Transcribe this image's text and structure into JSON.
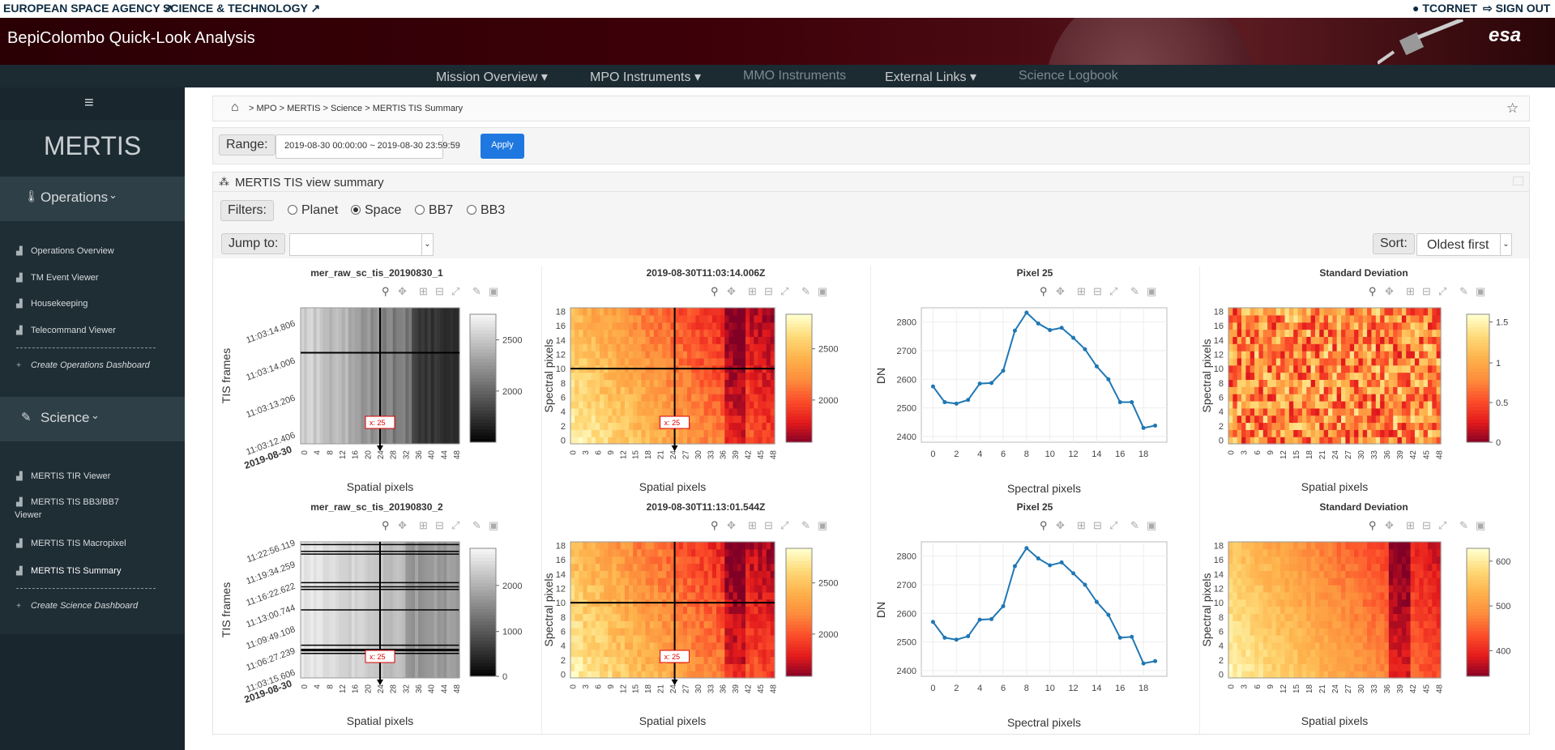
{
  "topbar": {
    "esa_link": "EUROPEAN SPACE AGENCY",
    "sci_link": "SCIENCE & TECHNOLOGY",
    "user": "TCORNET",
    "signout": "SIGN OUT"
  },
  "banner": {
    "title": "BepiColombo Quick-Look Analysis",
    "logo": "esa"
  },
  "nav": {
    "items": [
      {
        "label": "Mission Overview"
      },
      {
        "label": "MPO Instruments"
      },
      {
        "label": "MMO Instruments"
      },
      {
        "label": "External Links"
      },
      {
        "label": "Science Logbook"
      }
    ]
  },
  "sidebar": {
    "menu_icon": "hamburger-icon",
    "instrument": "MERTIS",
    "operations_label": "Operations",
    "operations_items": [
      "Operations Overview",
      "TM Event Viewer",
      "Housekeeping",
      "Telecommand Viewer"
    ],
    "create_ops": "Create Operations Dashboard",
    "science_label": "Science",
    "science_items": [
      "MERTIS TIR Viewer",
      "MERTIS TIS BB3/BB7",
      "Viewer",
      "MERTIS TIS Macropixel",
      "MERTIS TIS Summary"
    ],
    "create_sci": "Create Science Dashboard"
  },
  "breadcrumb": {
    "items": [
      "MPO",
      "MERTIS",
      "Science",
      "MERTIS TIS Summary"
    ]
  },
  "range": {
    "label": "Range:",
    "value": "2019-08-30 00:00:00 ~ 2019-08-30 23:59:59",
    "apply": "Apply"
  },
  "panel": {
    "title": "MERTIS TIS view summary",
    "filters_label": "Filters:",
    "filters": [
      "Planet",
      "Space",
      "BB7",
      "BB3"
    ],
    "selected_filter": "Space",
    "jump_label": "Jump to:",
    "sort_label": "Sort:",
    "sort_value": "Oldest first"
  },
  "rows": [
    {
      "t1": "mer_raw_sc_tis_20190830_1",
      "t2": "2019-08-30T11:03:14.006Z",
      "t3": "Pixel 25",
      "t4": "Standard Deviation",
      "yticks": [
        "11:03:14.806",
        "11:03:14.006",
        "11:03:13.206",
        "11:03:12.406"
      ],
      "date": "2019-08-30",
      "gray_ticks": [
        "2500",
        "2000"
      ],
      "heat_ticks": [
        "2500",
        "2000"
      ],
      "std_ticks": [
        "1.5",
        "1",
        "0.5",
        "0"
      ],
      "line": {
        "x": [
          0,
          1,
          2,
          3,
          4,
          5,
          6,
          7,
          8,
          9,
          10,
          11,
          12,
          13,
          14,
          15,
          16,
          17,
          18,
          19
        ],
        "y": [
          2575,
          2520,
          2515,
          2528,
          2585,
          2587,
          2630,
          2770,
          2833,
          2795,
          2772,
          2780,
          2745,
          2705,
          2645,
          2600,
          2520,
          2520,
          2430,
          2438
        ]
      }
    },
    {
      "t1": "mer_raw_sc_tis_20190830_2",
      "t2": "2019-08-30T11:13:01.544Z",
      "t3": "Pixel 25",
      "t4": "Standard Deviation",
      "yticks": [
        "11:22:56.119",
        "11:19:34.259",
        "11:16:22.622",
        "11:13:00.744",
        "11:09:49.108",
        "11:06:27.239",
        "11:03:15.606"
      ],
      "date": "2019-08-30",
      "gray_ticks": [
        "2000",
        "1000",
        "0"
      ],
      "heat_ticks": [
        "2500",
        "2000"
      ],
      "std_ticks": [
        "600",
        "500",
        "400"
      ],
      "line": {
        "x": [
          0,
          1,
          2,
          3,
          4,
          5,
          6,
          7,
          8,
          9,
          10,
          11,
          12,
          13,
          14,
          15,
          16,
          17,
          18,
          19
        ],
        "y": [
          2570,
          2515,
          2508,
          2520,
          2578,
          2580,
          2625,
          2765,
          2828,
          2792,
          2768,
          2778,
          2740,
          2700,
          2640,
          2595,
          2515,
          2518,
          2425,
          2433
        ]
      }
    }
  ],
  "common": {
    "spatial_label": "Spatial pixels",
    "spectral_label": "Spectral pixels",
    "tis_label": "TIS frames",
    "dn_label": "DN",
    "cursor": "x: 25",
    "spatial_ticks_gray": [
      "0",
      "4",
      "8",
      "12",
      "16",
      "20",
      "24",
      "28",
      "32",
      "36",
      "40",
      "44",
      "48"
    ],
    "spatial_ticks_heat": [
      "0",
      "3",
      "6",
      "9",
      "12",
      "15",
      "18",
      "21",
      "24",
      "27",
      "30",
      "33",
      "36",
      "39",
      "42",
      "45",
      "48"
    ],
    "spectral_ticks": [
      "0",
      "2",
      "4",
      "6",
      "8",
      "10",
      "12",
      "14",
      "16",
      "18"
    ],
    "dn_ticks": [
      "2400",
      "2500",
      "2600",
      "2700",
      "2800"
    ],
    "line_xticks": [
      "0",
      "2",
      "4",
      "6",
      "8",
      "10",
      "12",
      "14",
      "16",
      "18"
    ]
  },
  "colors": {
    "line": "#1f77b4",
    "accent": "#1f78e0",
    "nav": "#1c2a32"
  }
}
